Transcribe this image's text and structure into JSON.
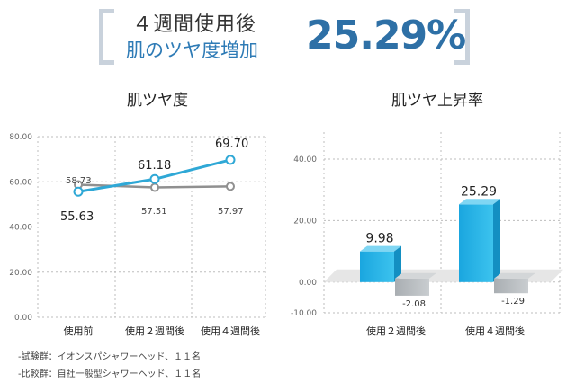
{
  "header": {
    "line1": "４週間使用後",
    "line2": "肌のツヤ度増加",
    "highlight_value": "25.29%"
  },
  "chart_data": [
    {
      "type": "line",
      "title": "肌ツヤ度",
      "categories": [
        "使用前",
        "使用２週間後",
        "使用４週間後"
      ],
      "ylim": [
        0,
        80
      ],
      "y_ticks": [
        "0.00",
        "20.00",
        "40.00",
        "60.00",
        "80.00"
      ],
      "grid": true,
      "series": [
        {
          "values": [
            55.63,
            61.18,
            69.7
          ],
          "labels": [
            "55.63",
            "61.18",
            "69.70"
          ],
          "color": "#2fa8d6"
        },
        {
          "values": [
            58.73,
            57.51,
            57.97
          ],
          "labels": [
            "58.73",
            "57.51",
            "57.97"
          ],
          "color": "#909090"
        }
      ]
    },
    {
      "type": "bar",
      "title": "肌ツヤ上昇率",
      "categories": [
        "使用２週間後",
        "使用４週間後"
      ],
      "ylim": [
        -10,
        40
      ],
      "y_ticks": [
        "-10.00",
        "0.00",
        "20.00",
        "40.00"
      ],
      "grid": true,
      "series": [
        {
          "values": [
            9.98,
            25.29
          ],
          "labels": [
            "9.98",
            "25.29"
          ],
          "color": "#1ba7e0"
        },
        {
          "values": [
            -2.08,
            -1.29
          ],
          "labels": [
            "-2.08",
            "-1.29"
          ],
          "color": "#b7bcc0"
        }
      ]
    }
  ],
  "notes": [
    "-試験群：イオンスパシャワーヘッド、１１名",
    "-比較群：自社一般型シャワーヘッド、１１名"
  ]
}
